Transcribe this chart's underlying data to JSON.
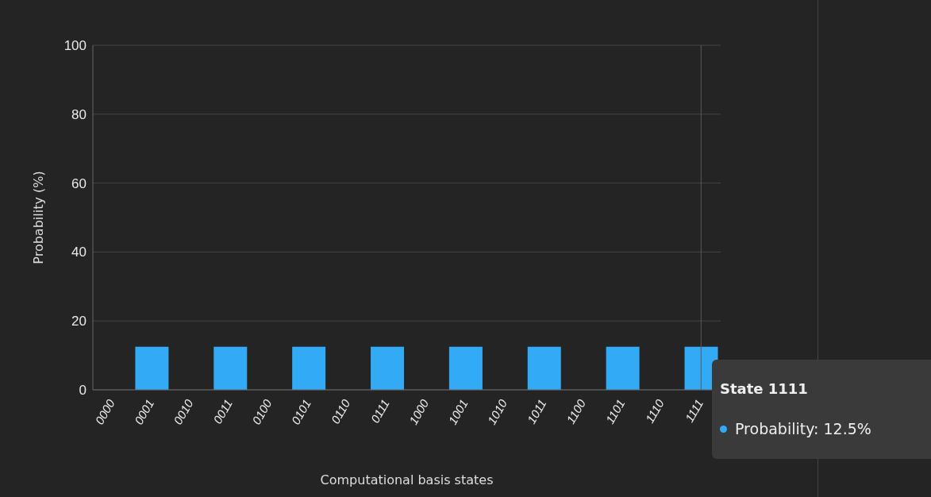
{
  "chart_data": {
    "type": "bar",
    "xlabel": "Computational basis states",
    "ylabel": "Probability (%)",
    "categories": [
      "0000",
      "0001",
      "0010",
      "0011",
      "0100",
      "0101",
      "0110",
      "0111",
      "1000",
      "1001",
      "1010",
      "1011",
      "1100",
      "1101",
      "1110",
      "1111"
    ],
    "values": [
      0,
      12.5,
      0,
      12.5,
      0,
      12.5,
      0,
      12.5,
      0,
      12.5,
      0,
      12.5,
      0,
      12.5,
      0,
      12.5
    ],
    "color": "#33aaf5",
    "ylim": [
      0,
      100
    ],
    "yticks": [
      0,
      20,
      40,
      60,
      80,
      100
    ],
    "grid": "y",
    "ref_lines": [
      {
        "axis": "x",
        "value": "1111",
        "color": "#5a5a5a"
      }
    ],
    "annotations": [
      "State 1111",
      "Probability: 12.5%"
    ]
  }
}
